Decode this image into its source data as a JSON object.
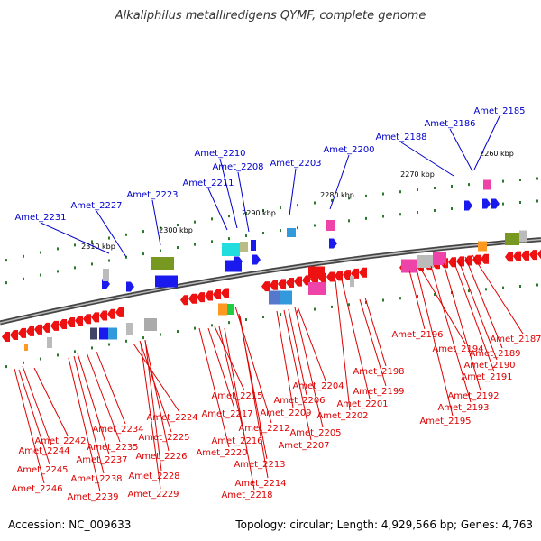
{
  "title": "Alkaliphilus metalliredigens QYMF, complete genome",
  "footer": {
    "accession": "Accession: NC_009633",
    "summary": "Topology: circular; Length: 4,929,566 bp; Genes: 4,763"
  },
  "colors": {
    "forward_label": "#0000cc",
    "reverse_label": "#dd0000",
    "backbone": "#808080",
    "tick": "#2a7a2a"
  },
  "scale_labels": [
    "2260 kbp",
    "2270 kbp",
    "2280 kbp",
    "2290 kbp",
    "2300 kbp",
    "2310 kbp"
  ],
  "forward_genes": [
    "Amet_2185",
    "Amet_2186",
    "Amet_2188",
    "Amet_2200",
    "Amet_2203",
    "Amet_2208",
    "Amet_2210",
    "Amet_2211",
    "Amet_2223",
    "Amet_2227",
    "Amet_2231"
  ],
  "reverse_genes": [
    "Amet_2187",
    "Amet_2189",
    "Amet_2190",
    "Amet_2191",
    "Amet_2192",
    "Amet_2193",
    "Amet_2194",
    "Amet_2195",
    "Amet_2196",
    "Amet_2198",
    "Amet_2199",
    "Amet_2201",
    "Amet_2202",
    "Amet_2204",
    "Amet_2205",
    "Amet_2206",
    "Amet_2207",
    "Amet_2209",
    "Amet_2212",
    "Amet_2213",
    "Amet_2214",
    "Amet_2215",
    "Amet_2216",
    "Amet_2217",
    "Amet_2218",
    "Amet_2220",
    "Amet_2224",
    "Amet_2225",
    "Amet_2226",
    "Amet_2228",
    "Amet_2229",
    "Amet_2234",
    "Amet_2235",
    "Amet_2237",
    "Amet_2238",
    "Amet_2239",
    "Amet_2242",
    "Amet_2244",
    "Amet_2245",
    "Amet_2246"
  ]
}
